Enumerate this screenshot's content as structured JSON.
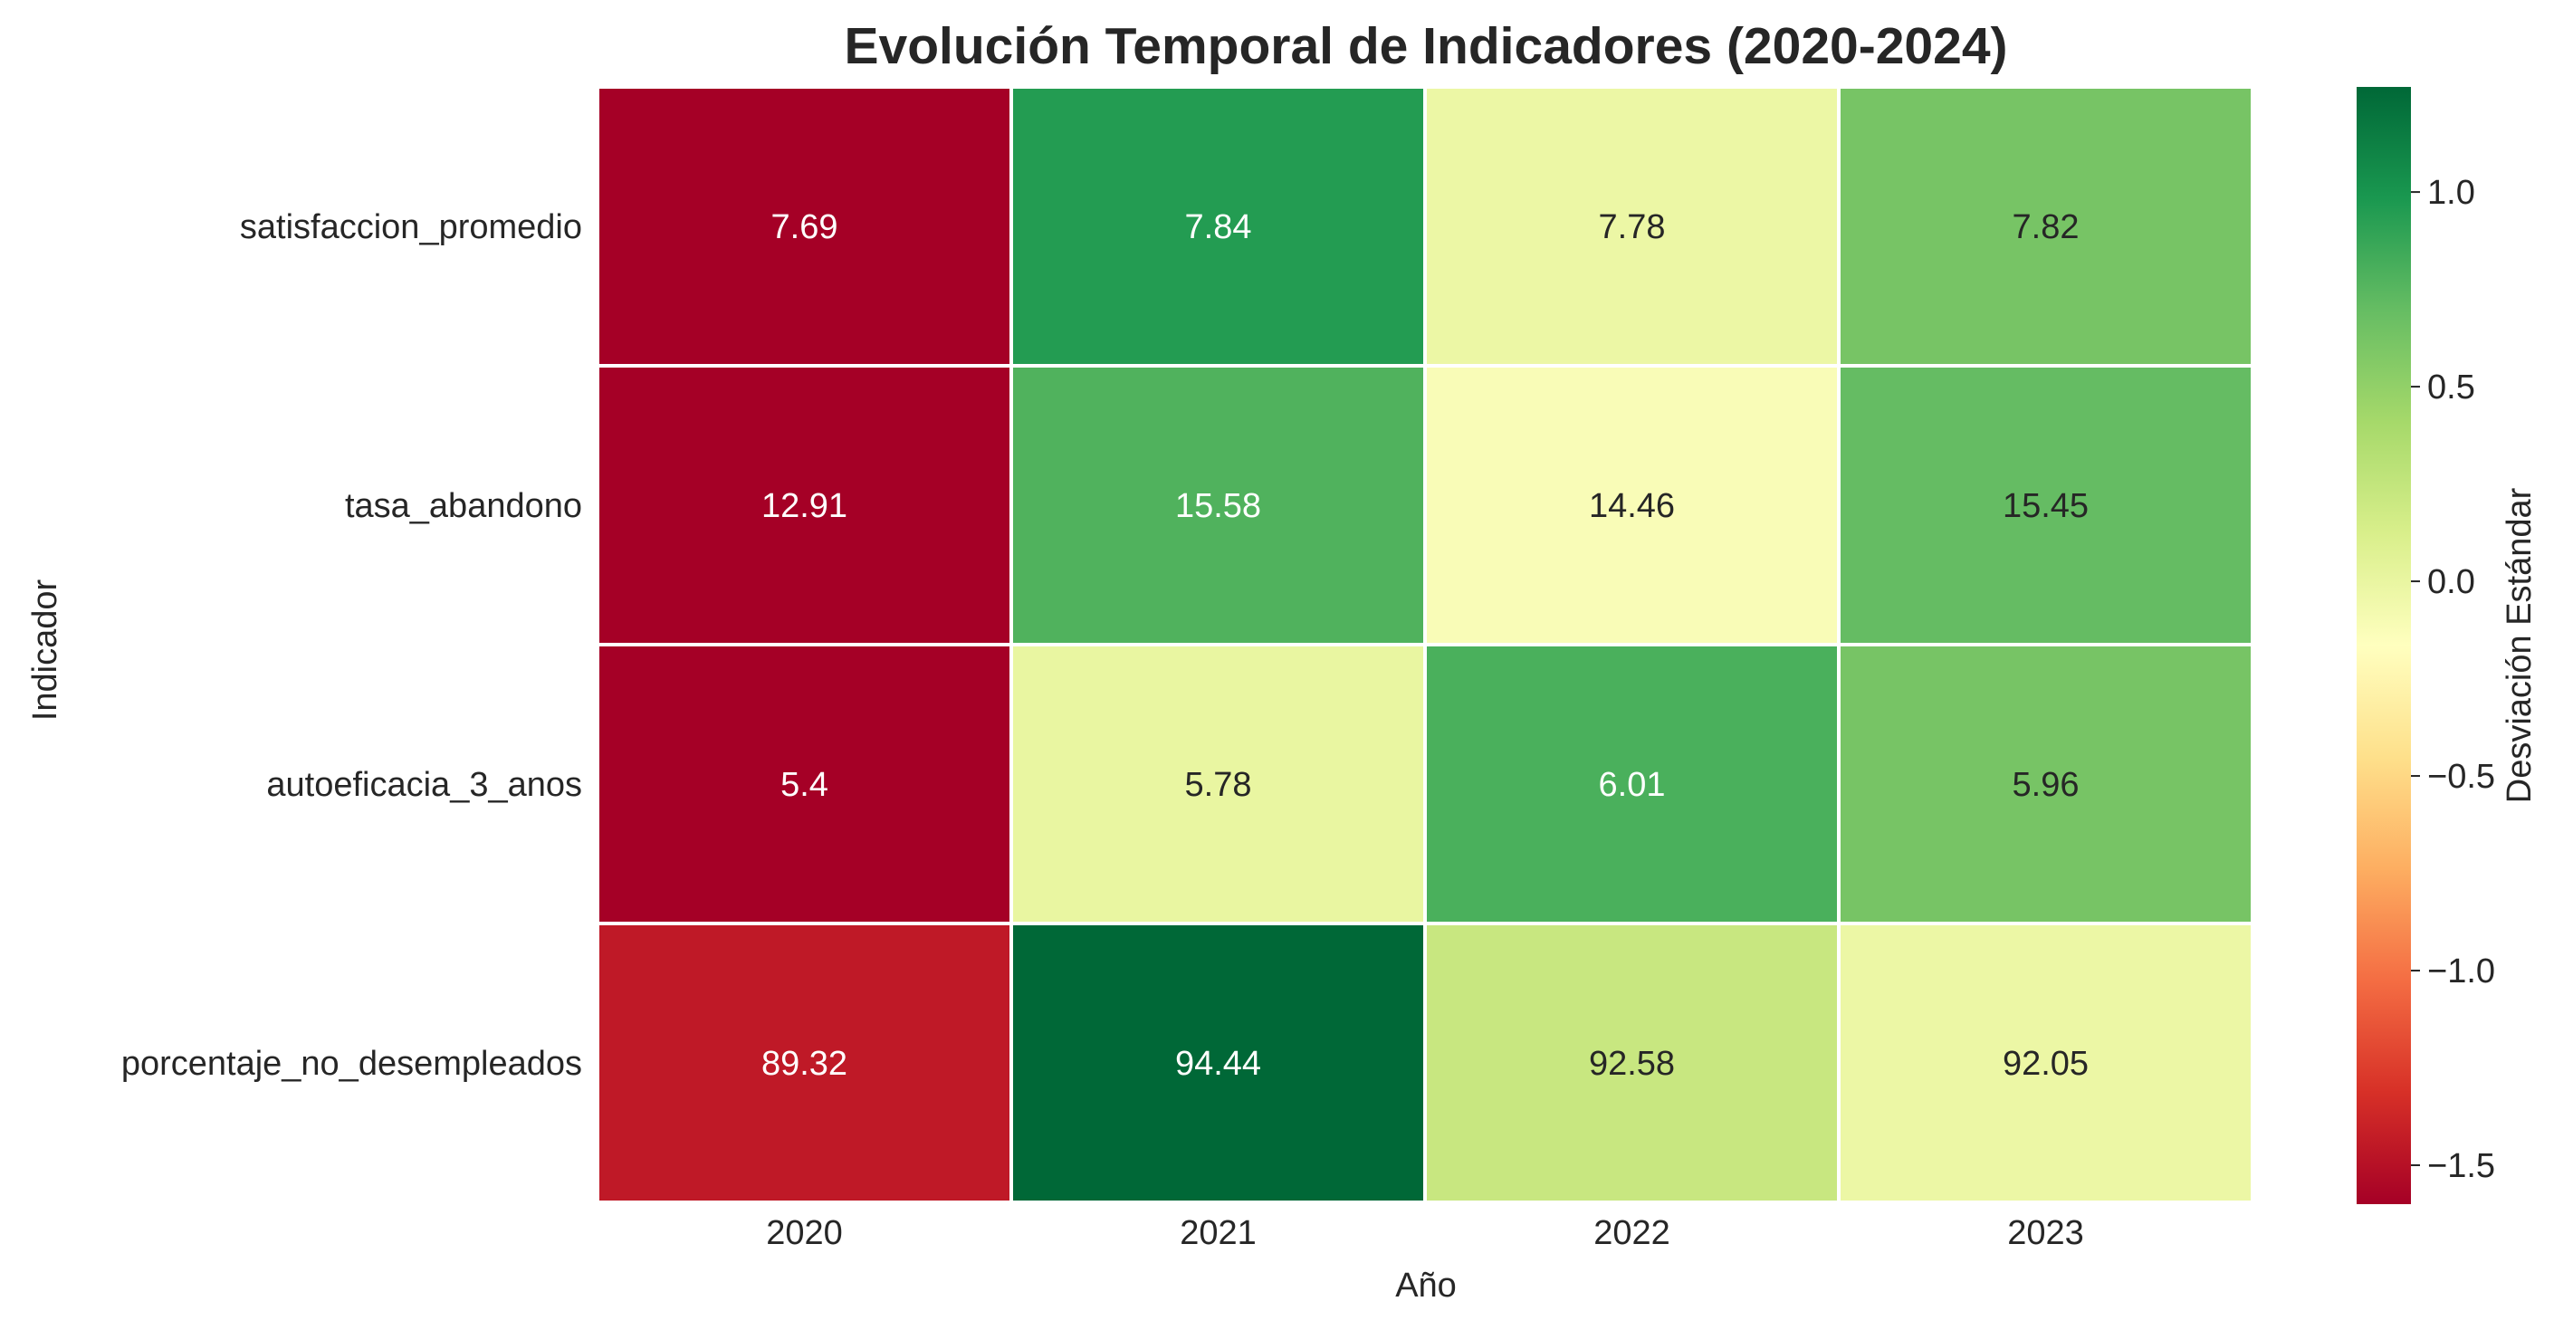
{
  "chart_data": {
    "type": "heatmap",
    "title": "Evolución Temporal de Indicadores (2020-2024)",
    "xlabel": "Año",
    "ylabel": "Indicador",
    "x_categories": [
      "2020",
      "2021",
      "2022",
      "2023"
    ],
    "y_categories": [
      "satisfaccion_promedio",
      "tasa_abandono",
      "autoeficacia_3_anos",
      "porcentaje_no_desempleados"
    ],
    "annotations": [
      [
        "7.69",
        "7.84",
        "7.78",
        "7.82"
      ],
      [
        "12.91",
        "15.58",
        "14.46",
        "15.45"
      ],
      [
        "5.4",
        "5.78",
        "6.01",
        "5.96"
      ],
      [
        "89.32",
        "94.44",
        "92.58",
        "92.05"
      ]
    ],
    "color_values": [
      [
        -1.6,
        0.95,
        -0.02,
        0.62
      ],
      [
        -1.6,
        0.78,
        -0.12,
        0.7
      ],
      [
        -1.6,
        0.0,
        0.8,
        0.62
      ],
      [
        -1.45,
        1.27,
        0.22,
        -0.02
      ]
    ],
    "colormap": "RdYlGn",
    "colorbar": {
      "label": "Desviación Estándar",
      "range": [
        -1.6,
        1.27
      ],
      "ticks": [
        -1.5,
        -1.0,
        -0.5,
        0.0,
        0.5,
        1.0
      ],
      "tick_labels": [
        "−1.5",
        "−1.0",
        "−0.5",
        "0.0",
        "0.5",
        "1.0"
      ]
    },
    "grid": false
  }
}
